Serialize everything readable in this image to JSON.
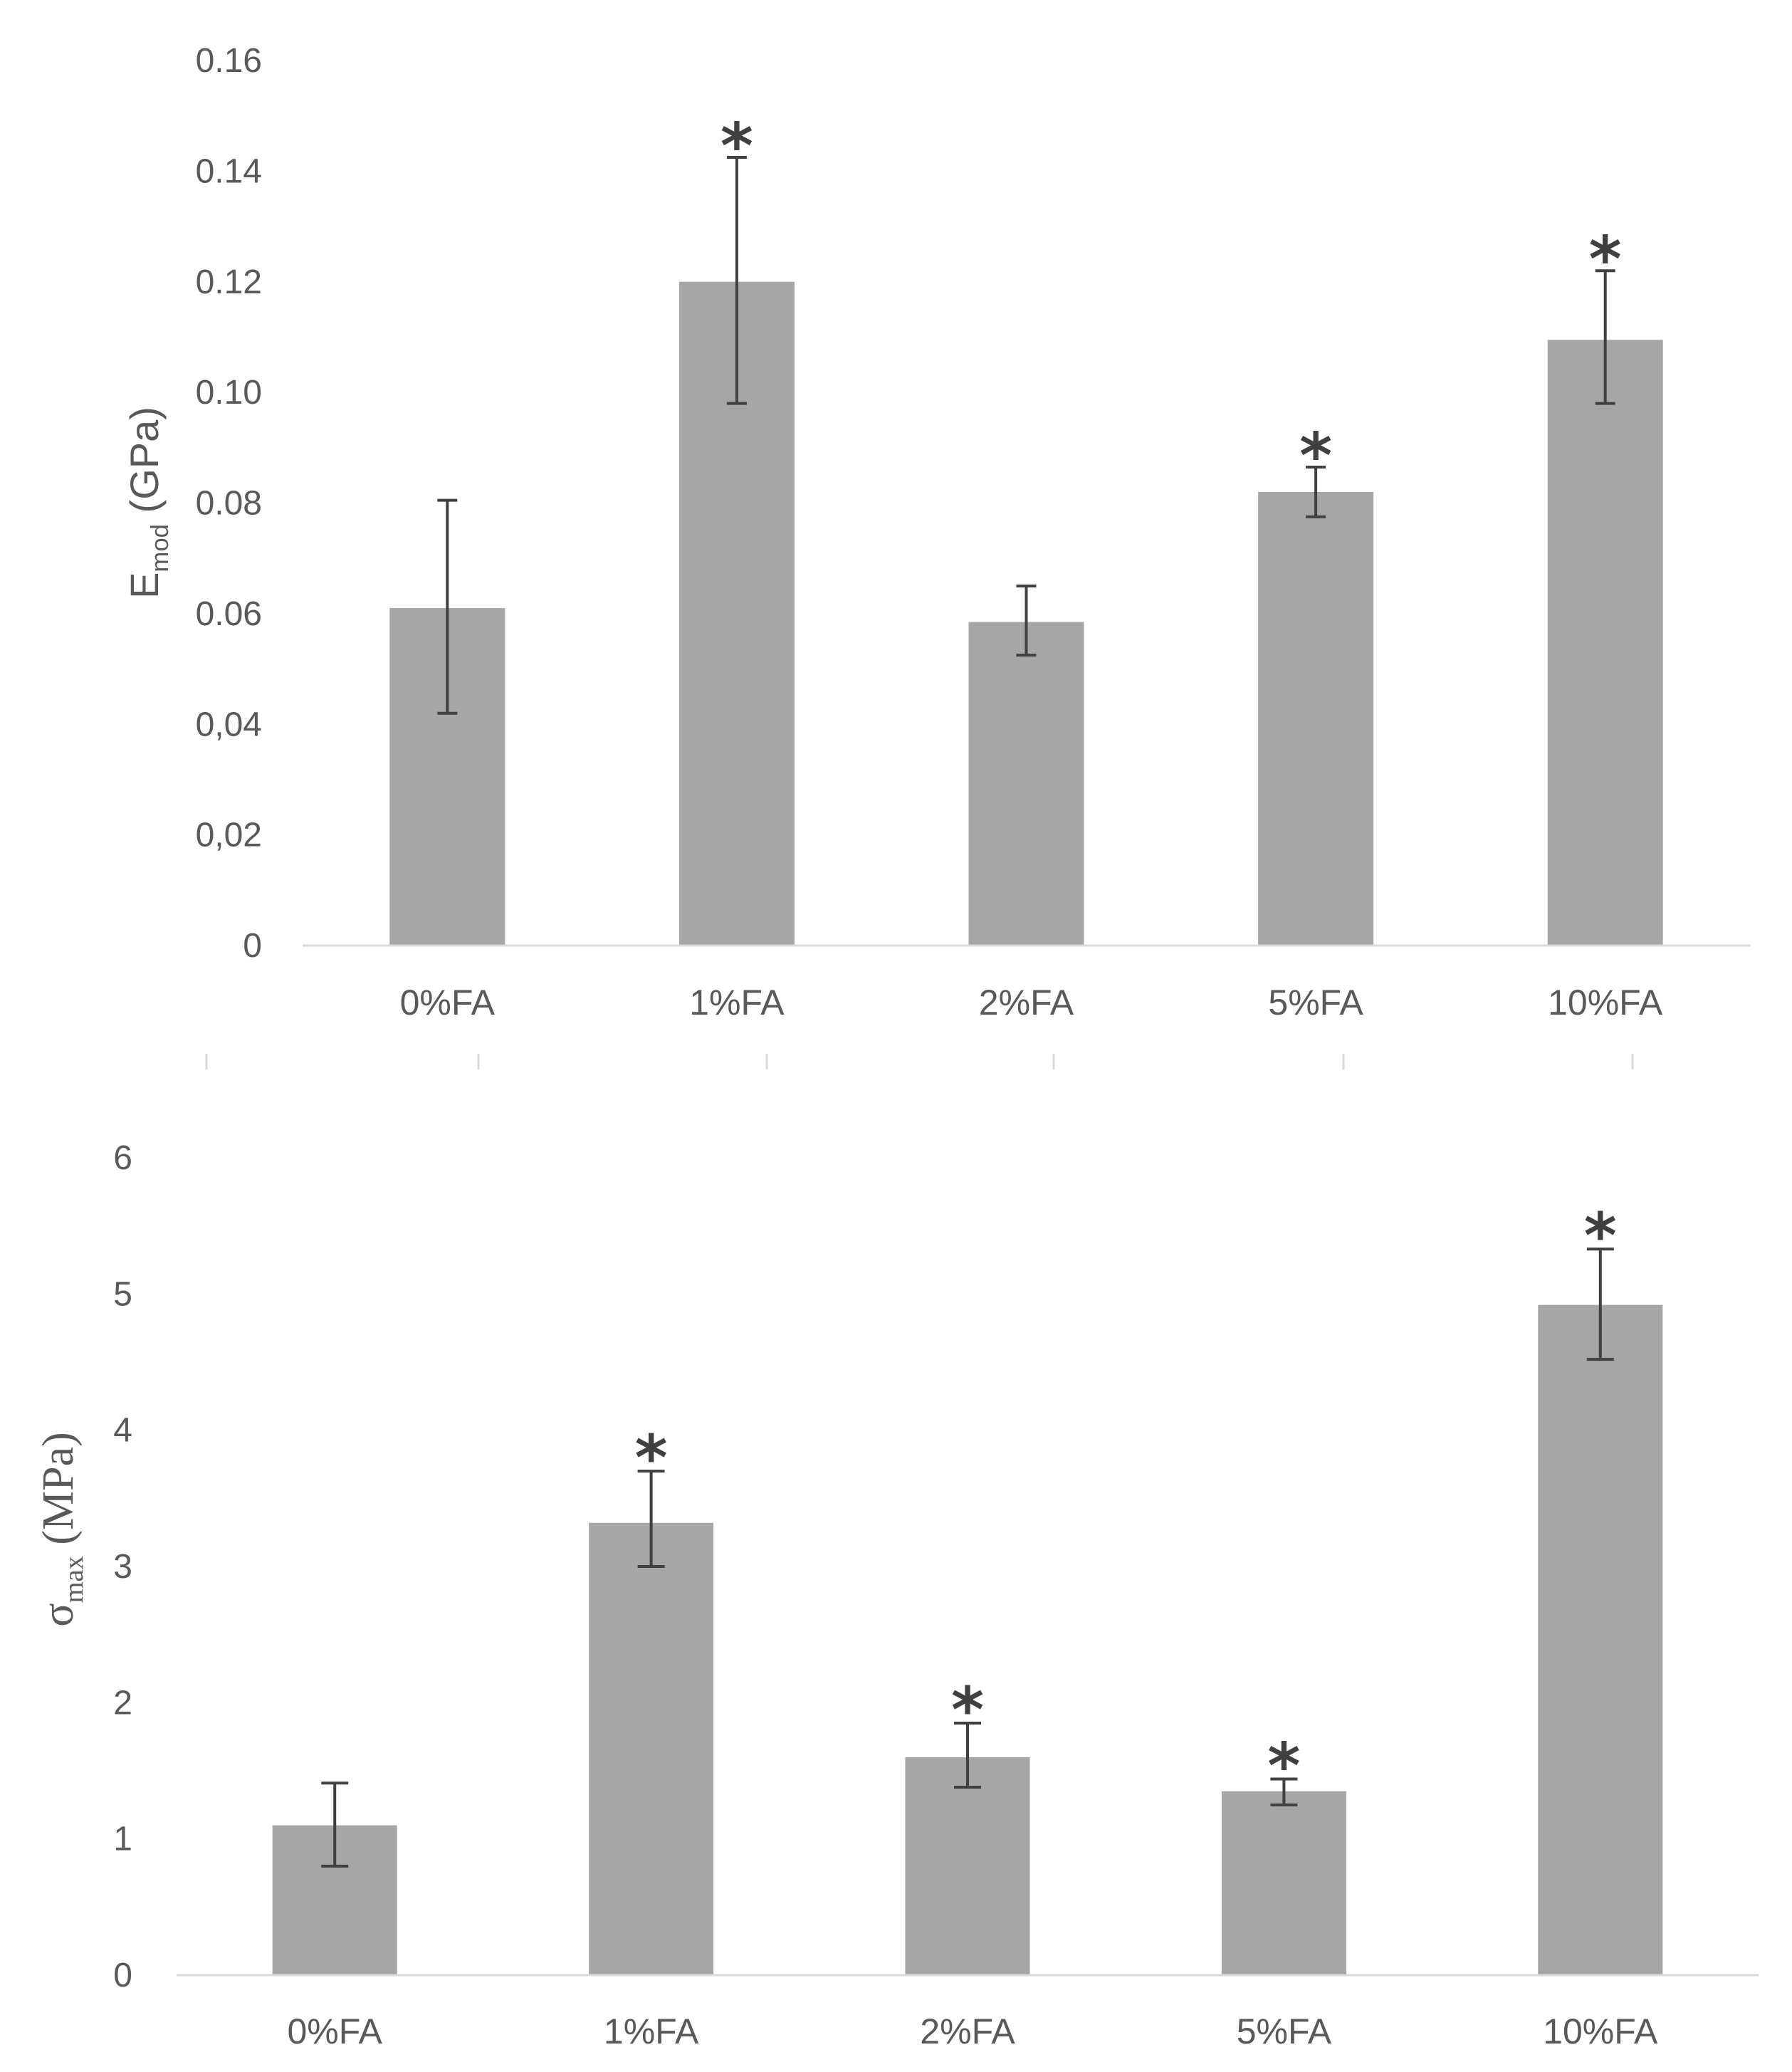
{
  "colors": {
    "bar": "#a6a6a6",
    "error_bar": "#404040",
    "axis": "#d9d9d9",
    "text": "#595959"
  },
  "chart_data": [
    {
      "type": "bar",
      "ylabel_main": "E",
      "ylabel_sub": "mod",
      "ylabel_rest": " (GPa)",
      "categories": [
        "0%FA",
        "1%FA",
        "2%FA",
        "5%FA",
        "10%FA"
      ],
      "values": [
        0.061,
        0.12,
        0.0585,
        0.082,
        0.1095
      ],
      "error_low": [
        0.042,
        0.098,
        0.0525,
        0.0775,
        0.098
      ],
      "error_high": [
        0.0805,
        0.1425,
        0.065,
        0.0865,
        0.122
      ],
      "significant": [
        false,
        true,
        false,
        true,
        true
      ],
      "significance_mark": "*",
      "ylim": [
        0,
        0.16
      ],
      "yticks": [
        0,
        0.02,
        0.04,
        0.06,
        0.08,
        0.1,
        0.12,
        0.14,
        0.16
      ],
      "ytick_labels": [
        "0",
        "0,02",
        "0,04",
        "0.06",
        "0.08",
        "0.10",
        "0.12",
        "0.14",
        "0.16"
      ]
    },
    {
      "type": "bar",
      "ylabel_main": "σ",
      "ylabel_sub": "max",
      "ylabel_rest": " (MPa)",
      "categories": [
        "0%FA",
        "1%FA",
        "2%FA",
        "5%FA",
        "10%FA"
      ],
      "values": [
        1.1,
        3.32,
        1.6,
        1.35,
        4.92
      ],
      "error_low": [
        0.8,
        3.0,
        1.38,
        1.25,
        4.52
      ],
      "error_high": [
        1.41,
        3.7,
        1.85,
        1.44,
        5.33
      ],
      "significant": [
        false,
        true,
        true,
        true,
        true
      ],
      "significance_mark": "*",
      "ylim": [
        0,
        6
      ],
      "yticks": [
        0,
        1,
        2,
        3,
        4,
        5,
        6
      ],
      "ytick_labels": [
        "0",
        "1",
        "2",
        "3",
        "4",
        "5",
        "6"
      ]
    }
  ]
}
